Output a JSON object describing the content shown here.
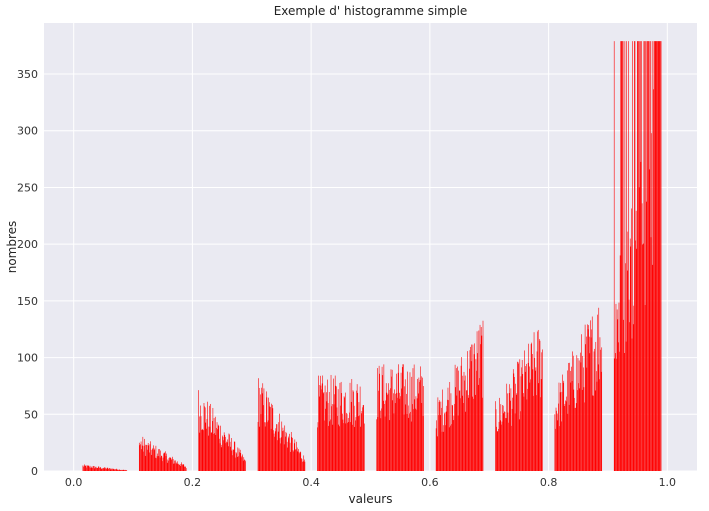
{
  "chart_data": {
    "type": "bar",
    "title": "Exemple d' histogramme simple",
    "xlabel": "valeurs",
    "ylabel": "nombres",
    "xlim": [
      -0.05,
      1.05
    ],
    "ylim": [
      0,
      395
    ],
    "xticks": [
      0.0,
      0.2,
      0.4,
      0.6,
      0.8,
      1.0
    ],
    "xtick_labels": [
      "0.0",
      "0.2",
      "0.4",
      "0.6",
      "0.8",
      "1.0"
    ],
    "yticks": [
      0,
      50,
      100,
      150,
      200,
      250,
      300,
      350
    ],
    "ytick_labels": [
      "0",
      "50",
      "100",
      "150",
      "200",
      "250",
      "300",
      "350"
    ],
    "grid": true,
    "bar_color": "#ff0000",
    "background_color": "#eaeaf2",
    "grid_color": "#ffffff",
    "groups": [
      {
        "x_start": 0.015,
        "x_end": 0.09,
        "peak": 6,
        "trend": "decreasing"
      },
      {
        "x_start": 0.11,
        "x_end": 0.19,
        "peak": 33,
        "trend": "decreasing"
      },
      {
        "x_start": 0.21,
        "x_end": 0.29,
        "peak": 76,
        "trend": "decreasing"
      },
      {
        "x_start": 0.31,
        "x_end": 0.39,
        "peak": 87,
        "trend": "decreasing"
      },
      {
        "x_start": 0.41,
        "x_end": 0.49,
        "peak": 100,
        "trend": "flat"
      },
      {
        "x_start": 0.51,
        "x_end": 0.59,
        "peak": 113,
        "trend": "flat"
      },
      {
        "x_start": 0.61,
        "x_end": 0.69,
        "peak": 141,
        "trend": "increasing"
      },
      {
        "x_start": 0.71,
        "x_end": 0.79,
        "peak": 137,
        "trend": "increasing"
      },
      {
        "x_start": 0.81,
        "x_end": 0.89,
        "peak": 163,
        "trend": "increasing"
      },
      {
        "x_start": 0.91,
        "x_end": 0.99,
        "peak": 379,
        "trend": "increasing"
      }
    ]
  }
}
